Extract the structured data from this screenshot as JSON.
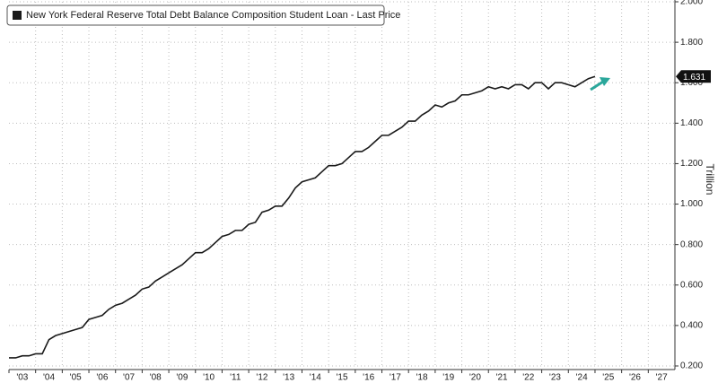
{
  "chart_data": {
    "type": "line",
    "series": [
      {
        "name": "New York Federal Reserve Total Debt Balance Composition Student Loan - Last Price",
        "color": "#1a1a1a",
        "values": [
          0.24,
          0.24,
          0.25,
          0.25,
          0.26,
          0.26,
          0.33,
          0.35,
          0.36,
          0.37,
          0.38,
          0.39,
          0.43,
          0.44,
          0.45,
          0.48,
          0.5,
          0.51,
          0.53,
          0.55,
          0.58,
          0.59,
          0.62,
          0.64,
          0.66,
          0.68,
          0.7,
          0.73,
          0.76,
          0.76,
          0.78,
          0.81,
          0.84,
          0.85,
          0.87,
          0.87,
          0.9,
          0.91,
          0.96,
          0.97,
          0.99,
          0.99,
          1.03,
          1.08,
          1.11,
          1.12,
          1.13,
          1.16,
          1.19,
          1.19,
          1.2,
          1.23,
          1.26,
          1.26,
          1.28,
          1.31,
          1.34,
          1.34,
          1.36,
          1.38,
          1.41,
          1.41,
          1.44,
          1.46,
          1.49,
          1.48,
          1.5,
          1.51,
          1.54,
          1.54,
          1.55,
          1.56,
          1.58,
          1.57,
          1.58,
          1.57,
          1.59,
          1.59,
          1.57,
          1.6,
          1.6,
          1.57,
          1.6,
          1.6,
          1.59,
          1.58,
          1.6,
          1.62,
          1.631
        ]
      }
    ],
    "x": [
      2003,
      2003.25,
      2003.5,
      2003.75,
      2004,
      2004.25,
      2004.5,
      2004.75,
      2005,
      2005.25,
      2005.5,
      2005.75,
      2006,
      2006.25,
      2006.5,
      2006.75,
      2007,
      2007.25,
      2007.5,
      2007.75,
      2008,
      2008.25,
      2008.5,
      2008.75,
      2009,
      2009.25,
      2009.5,
      2009.75,
      2010,
      2010.25,
      2010.5,
      2010.75,
      2011,
      2011.25,
      2011.5,
      2011.75,
      2012,
      2012.25,
      2012.5,
      2012.75,
      2013,
      2013.25,
      2013.5,
      2013.75,
      2014,
      2014.25,
      2014.5,
      2014.75,
      2015,
      2015.25,
      2015.5,
      2015.75,
      2016,
      2016.25,
      2016.5,
      2016.75,
      2017,
      2017.25,
      2017.5,
      2017.75,
      2018,
      2018.25,
      2018.5,
      2018.75,
      2019,
      2019.25,
      2019.5,
      2019.75,
      2020,
      2020.25,
      2020.5,
      2020.75,
      2021,
      2021.25,
      2021.5,
      2021.75,
      2022,
      2022.25,
      2022.5,
      2022.75,
      2023,
      2023.25,
      2023.5,
      2023.75,
      2024,
      2024.25,
      2024.5,
      2024.75,
      2025
    ],
    "xlim": [
      2003,
      2028
    ],
    "xticks": [
      {
        "value": 2003,
        "label": "'03"
      },
      {
        "value": 2004,
        "label": "'04"
      },
      {
        "value": 2005,
        "label": "'05"
      },
      {
        "value": 2006,
        "label": "'06"
      },
      {
        "value": 2007,
        "label": "'07"
      },
      {
        "value": 2008,
        "label": "'08"
      },
      {
        "value": 2009,
        "label": "'09"
      },
      {
        "value": 2010,
        "label": "'10"
      },
      {
        "value": 2011,
        "label": "'11"
      },
      {
        "value": 2012,
        "label": "'12"
      },
      {
        "value": 2013,
        "label": "'13"
      },
      {
        "value": 2014,
        "label": "'14"
      },
      {
        "value": 2015,
        "label": "'15"
      },
      {
        "value": 2016,
        "label": "'16"
      },
      {
        "value": 2017,
        "label": "'17"
      },
      {
        "value": 2018,
        "label": "'18"
      },
      {
        "value": 2019,
        "label": "'19"
      },
      {
        "value": 2020,
        "label": "'20"
      },
      {
        "value": 2021,
        "label": "'21"
      },
      {
        "value": 2022,
        "label": "'22"
      },
      {
        "value": 2023,
        "label": "'23"
      },
      {
        "value": 2024,
        "label": "'24"
      },
      {
        "value": 2025,
        "label": "'25"
      },
      {
        "value": 2026,
        "label": "'26"
      },
      {
        "value": 2027,
        "label": "'27"
      }
    ],
    "ylim": [
      0.2,
      2.0
    ],
    "yticks": [
      {
        "value": 0.2,
        "label": "0.200"
      },
      {
        "value": 0.4,
        "label": "0.400"
      },
      {
        "value": 0.6,
        "label": "0.600"
      },
      {
        "value": 0.8,
        "label": "0.800"
      },
      {
        "value": 1.0,
        "label": "1.000"
      },
      {
        "value": 1.2,
        "label": "1.200"
      },
      {
        "value": 1.4,
        "label": "1.400"
      },
      {
        "value": 1.6,
        "label": "1.600"
      },
      {
        "value": 1.8,
        "label": "1.800"
      },
      {
        "value": 2.0,
        "label": "2.000"
      }
    ],
    "ylabel": "Trillion",
    "grid": true
  }
}
